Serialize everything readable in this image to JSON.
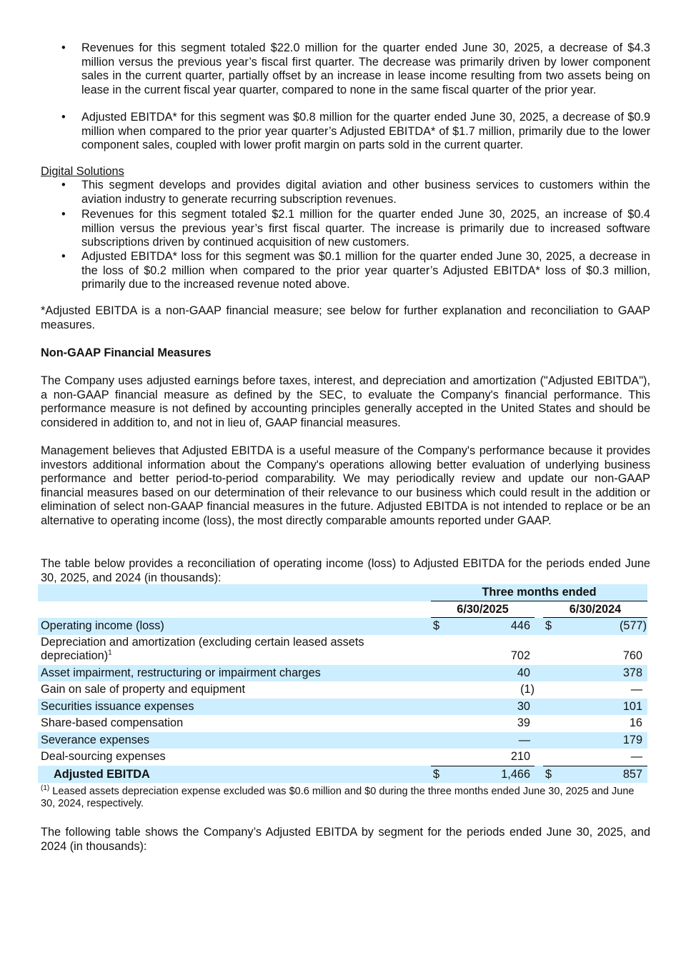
{
  "aviation_segment_bullets": [
    "Revenues for this segment totaled $22.0 million for the quarter ended June 30, 2025, a decrease of $4.3 million versus the previous year’s fiscal first quarter. The decrease was primarily driven by lower component sales in the current quarter, partially offset by an increase in lease income resulting from two assets being on lease in the current fiscal year quarter, compared to none in the same fiscal quarter of the prior year.",
    "Adjusted EBITDA* for this segment was $0.8 million for the quarter ended June 30, 2025, a decrease of $0.9 million when compared to the prior year quarter’s Adjusted EBITDA* of $1.7 million, primarily due to the lower component sales, coupled with lower profit margin on parts sold in the current quarter."
  ],
  "digital_solutions": {
    "heading": "Digital Solutions",
    "bullets": [
      "This segment develops and provides digital aviation and other business services to customers within the aviation industry to generate recurring subscription revenues.",
      "Revenues for this segment totaled $2.1 million for the quarter ended June 30, 2025, an increase of $0.4 million versus the previous year’s first fiscal quarter. The increase is primarily due to increased software subscriptions driven by continued acquisition of new customers.",
      "Adjusted EBITDA* loss for this segment was $0.1 million for the quarter ended June 30, 2025, a decrease in the loss of $0.2 million when compared to the prior year quarter’s Adjusted EBITDA* loss of $0.3 million, primarily due to the increased revenue noted above."
    ]
  },
  "bullet_char": "•",
  "asterisk_note": "*Adjusted EBITDA is a non-GAAP financial measure; see below for further explanation and reconciliation to GAAP measures.",
  "nongaap_heading": "Non-GAAP Financial Measures",
  "para1": "The Company uses adjusted earnings before taxes, interest, and depreciation and amortization (\"Adjusted EBITDA\"), a non-GAAP financial measure as defined by the SEC, to evaluate the Company's financial performance. This performance measure is not defined by accounting principles generally accepted in the United States and should be considered in addition to, and not in lieu of, GAAP financial measures.",
  "para2": "Management believes that Adjusted EBITDA is a useful measure of the Company's performance because it provides investors additional information about the Company's operations allowing better evaluation of underlying business performance and better period-to-period comparability. We may periodically review and update our non-GAAP financial measures based on our determination of their relevance to our business which could result in the addition or elimination of select non-GAAP financial measures in the future. Adjusted EBITDA is not intended to replace or be an alternative to operating income (loss), the most directly comparable amounts reported under GAAP.",
  "para3": "The table below provides a reconciliation of operating income (loss) to Adjusted EBITDA for the periods ended June 30, 2025, and 2024 (in thousands):",
  "table": {
    "group_header": "Three months ended",
    "col1": "6/30/2025",
    "col2": "6/30/2024",
    "dollar": "$",
    "rows": [
      {
        "label": "Operating income (loss)",
        "v1": "446",
        "v2": "(577)"
      },
      {
        "label": "Depreciation and amortization (excluding certain leased assets depreciation)",
        "sup": "1",
        "v1": "702",
        "v2": "760"
      },
      {
        "label": "Asset impairment, restructuring or impairment charges",
        "v1": "40",
        "v2": "378"
      },
      {
        "label": "Gain on sale of property and equipment",
        "v1": "(1)",
        "v2": "—"
      },
      {
        "label": "Securities issuance expenses",
        "v1": "30",
        "v2": "101"
      },
      {
        "label": "Share-based compensation",
        "v1": "39",
        "v2": "16"
      },
      {
        "label": "Severance expenses",
        "v1": "—",
        "v2": "179"
      },
      {
        "label": "Deal-sourcing expenses",
        "v1": "210",
        "v2": "—"
      }
    ],
    "total": {
      "label": "Adjusted EBITDA",
      "v1": "1,466",
      "v2": "857"
    },
    "row_highlight_color": "#cceeff"
  },
  "footnote": {
    "marker": "(1)",
    "text": "Leased assets depreciation expense excluded was $0.6 million and $0 during the three months ended June 30, 2025 and June 30, 2024, respectively."
  },
  "para4": "The following table shows the Company’s Adjusted EBITDA by segment for the periods ended June 30, 2025, and 2024 (in thousands):"
}
